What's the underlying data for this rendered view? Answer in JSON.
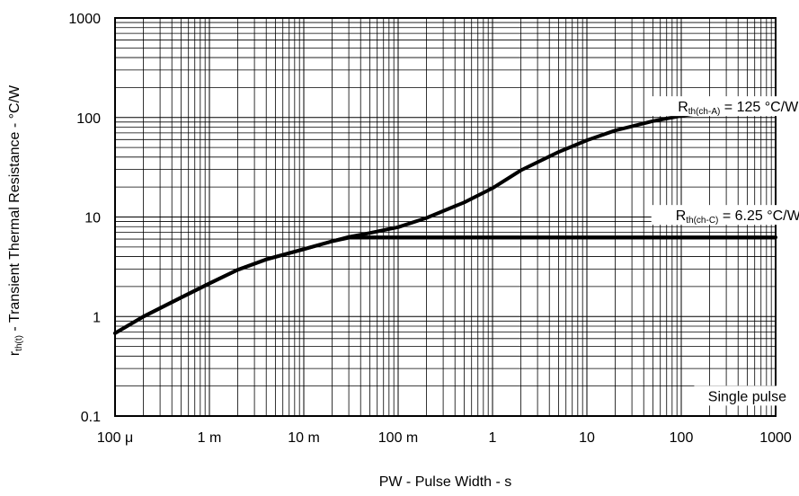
{
  "chart_data": {
    "type": "line",
    "title": "",
    "xlabel": "PW - Pulse Width - s",
    "ylabel_main": "r",
    "ylabel_sub": "th(t)",
    "ylabel_rest": " - Transient Thermal Resistance - °C/W",
    "xscale": "log",
    "yscale": "log",
    "xlim": [
      0.0001,
      1000
    ],
    "ylim": [
      0.1,
      1000
    ],
    "grid": true,
    "x_ticks": [
      {
        "value": 0.0001,
        "label": "100 μ"
      },
      {
        "value": 0.001,
        "label": "1 m"
      },
      {
        "value": 0.01,
        "label": "10 m"
      },
      {
        "value": 0.1,
        "label": "100 m"
      },
      {
        "value": 1,
        "label": "1"
      },
      {
        "value": 10,
        "label": "10"
      },
      {
        "value": 100,
        "label": "100"
      },
      {
        "value": 1000,
        "label": "1000"
      }
    ],
    "y_ticks": [
      {
        "value": 0.1,
        "label": "0.1"
      },
      {
        "value": 1,
        "label": "1"
      },
      {
        "value": 10,
        "label": "10"
      },
      {
        "value": 100,
        "label": "100"
      },
      {
        "value": 1000,
        "label": "1000"
      }
    ],
    "series": [
      {
        "x": [
          0.0001,
          0.0002,
          0.0005,
          0.001,
          0.002,
          0.004,
          0.01,
          0.02,
          0.03,
          0.05,
          0.1,
          0.2,
          0.5,
          1,
          2,
          5,
          10,
          20,
          50,
          100,
          200,
          500,
          1000
        ],
        "y": [
          0.68,
          1.0,
          1.55,
          2.15,
          2.95,
          3.75,
          4.75,
          5.7,
          6.3,
          6.9,
          7.9,
          9.8,
          14.0,
          19.5,
          29.5,
          45.0,
          59.0,
          74.0,
          92.0,
          104.0,
          114.0,
          121.0,
          125.0
        ]
      },
      {
        "x": [
          0.0001,
          0.0002,
          0.0005,
          0.001,
          0.002,
          0.004,
          0.01,
          0.02,
          0.03,
          0.035,
          0.05,
          0.1,
          1,
          10,
          100,
          1000
        ],
        "y": [
          0.68,
          1.0,
          1.55,
          2.15,
          2.95,
          3.75,
          4.75,
          5.7,
          6.2,
          6.25,
          6.25,
          6.25,
          6.25,
          6.25,
          6.25,
          6.25
        ]
      }
    ],
    "annotations": [
      {
        "main": "R",
        "sub": "th(ch-A)",
        "rest": " = 125 °C/W",
        "x": 400,
        "y": 130
      },
      {
        "main": "R",
        "sub": "th(ch-C)",
        "rest": " = 6.25 °C/W",
        "x": 400,
        "y": 10.5
      },
      {
        "main": "Single pulse",
        "sub": "",
        "rest": "",
        "x": 500,
        "y": 0.16
      }
    ],
    "colors": {
      "line": "#000000",
      "grid": "#000000",
      "axis": "#000000"
    }
  }
}
